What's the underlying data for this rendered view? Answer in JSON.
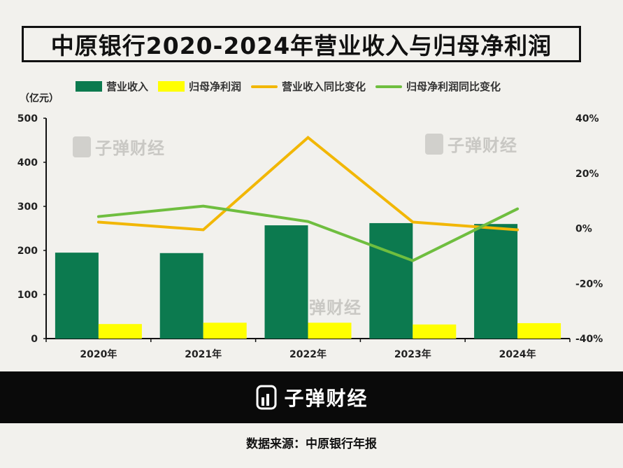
{
  "title": "中原银行2020-2024年营业收入与归母净利润",
  "unit_label": "（亿元）",
  "watermark": "子弹财经",
  "footer": {
    "logo_text": "子弹财经",
    "source": "数据来源：中原银行年报"
  },
  "colors": {
    "revenue": "#0c7a4f",
    "profit": "#ffff00",
    "revenue_yoy": "#f2b705",
    "profit_yoy": "#6fbe3f"
  },
  "chart_data": {
    "type": "bar",
    "title": "中原银行2020-2024年营业收入与归母净利润",
    "categories": [
      "2020年",
      "2021年",
      "2022年",
      "2023年",
      "2024年"
    ],
    "ylabel": "（亿元）",
    "ylim": [
      0,
      500
    ],
    "yticks": [
      0,
      100,
      200,
      300,
      400,
      500
    ],
    "y2lim": [
      -40,
      40
    ],
    "y2ticks": [
      "-40%",
      "-20%",
      "0%",
      "20%",
      "40%"
    ],
    "y2tick_values": [
      -40,
      -20,
      0,
      20,
      40
    ],
    "legend_position": "top",
    "grid": false,
    "series": [
      {
        "name": "营业收入",
        "kind": "bar",
        "axis": "left",
        "values": [
          195,
          194,
          257,
          262,
          260
        ]
      },
      {
        "name": "归母净利润",
        "kind": "bar",
        "axis": "left",
        "values": [
          33,
          36,
          36,
          32,
          35
        ]
      },
      {
        "name": "营业收入同比变化",
        "kind": "line",
        "axis": "right",
        "values": [
          2.3,
          -0.5,
          33.0,
          2.3,
          -0.5
        ]
      },
      {
        "name": "归母净利润同比变化",
        "kind": "line",
        "axis": "right",
        "values": [
          4.3,
          8.1,
          2.5,
          -11.7,
          7.1
        ]
      }
    ]
  }
}
